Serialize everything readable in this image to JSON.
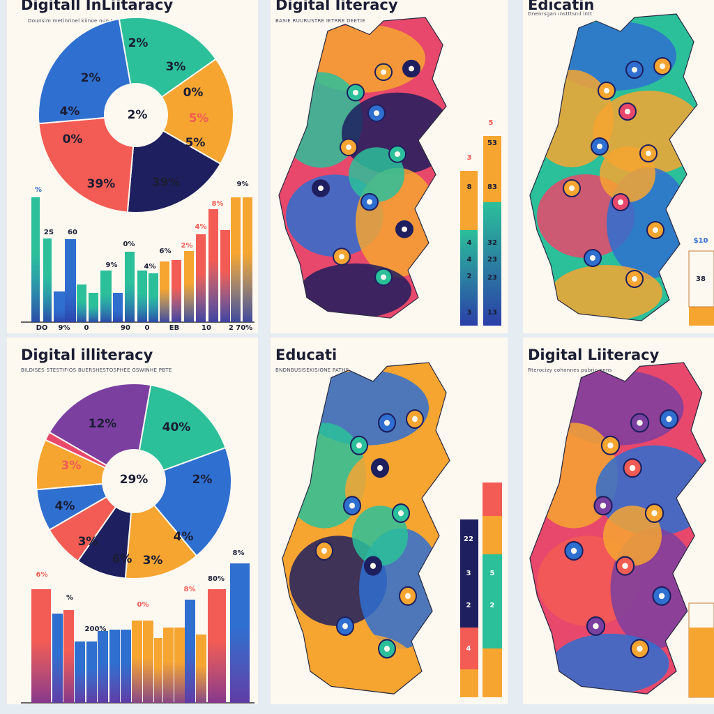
{
  "panels": [
    {
      "title": "Digitall InLiitaracy",
      "subtitle": "Dounsim metinrinel kiinoe nun tudtnins poiniis",
      "labels": [
        "2%",
        "3%",
        "2%",
        "2%",
        "4%",
        "0%",
        "0%",
        "5%",
        "5%",
        "39%",
        "39%",
        "%",
        "2S",
        "60",
        "0%",
        "9%",
        "6%",
        "4%",
        "2%",
        "8%",
        "4%",
        "9%",
        "DO",
        "9%",
        "0",
        "90",
        "0",
        "EB",
        "10",
        "2 70%"
      ]
    },
    {
      "title": "Digital Iiteracy",
      "subtitle": "BASIE RUURUSTRE IETRRE DEETIE",
      "labels": [
        "5",
        "3",
        "53",
        "8",
        "83",
        "4",
        "32",
        "4",
        "23",
        "2",
        "23",
        "3",
        "13"
      ]
    },
    {
      "title": "Edıcatin",
      "subtitle": "Dnenrsgan ınstttsnıl lntt",
      "labels": [
        "$10",
        "38"
      ]
    },
    {
      "title": "Digital illiteracy",
      "subtitle": "BILDISES STESTIFIOS BUERSHESTOSPHEE GSWINHE PBTE",
      "labels": [
        "12%",
        "40%",
        "3%",
        "29%",
        "2%",
        "4%",
        "3%",
        "4%",
        "6%",
        "3%",
        "6%",
        "%",
        "200%",
        "0%",
        "8%",
        "80%",
        "8%"
      ]
    },
    {
      "title": "Educati",
      "subtitle": "BNDNBUSISEKISIONE PATHS",
      "labels": [
        "22",
        "5",
        "3",
        "2",
        "2",
        "4"
      ]
    },
    {
      "title": "Digital Liiteracy",
      "subtitle": "Rterocizy cohonnes pubric enns"
    }
  ]
}
